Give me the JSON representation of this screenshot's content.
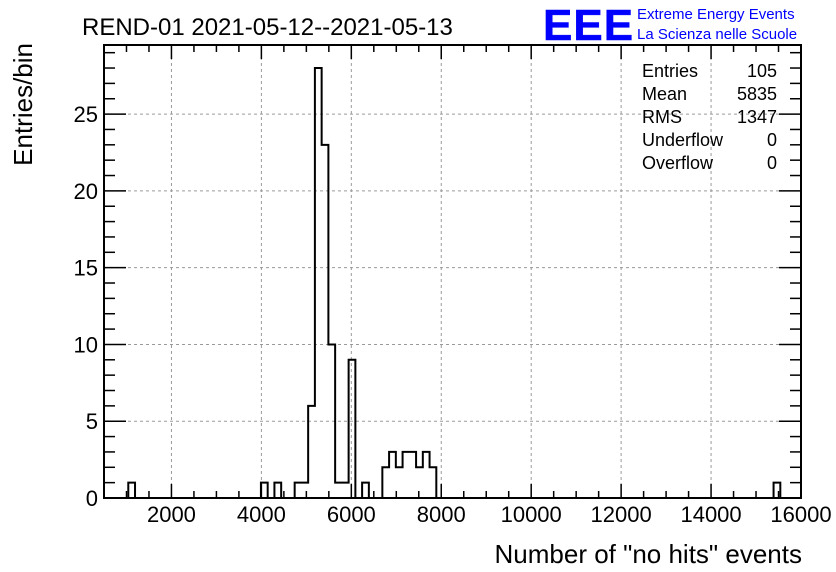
{
  "logo": {
    "letters": "EEE",
    "line1": "Extreme Energy Events",
    "line2": "La Scienza nelle Scuole",
    "color": "#0000ff"
  },
  "stats": {
    "rows": [
      {
        "label": "Entries",
        "value": "105"
      },
      {
        "label": "Mean",
        "value": "5835"
      },
      {
        "label": "RMS",
        "value": "1347"
      },
      {
        "label": "Underflow",
        "value": "0"
      },
      {
        "label": "Overflow",
        "value": "0"
      }
    ]
  },
  "chart_data": {
    "type": "bar",
    "title": "REND-01 2021-05-12--2021-05-13",
    "xlabel": "Number of \"no hits\" events",
    "ylabel": "Entries/bin",
    "xlim": [
      500,
      16000
    ],
    "ylim": [
      0,
      29.5
    ],
    "grid": true,
    "x_ticks": [
      2000,
      4000,
      6000,
      8000,
      10000,
      12000,
      14000,
      16000
    ],
    "y_ticks": [
      0,
      5,
      10,
      15,
      20,
      25
    ],
    "bins": [
      {
        "x0": 1040,
        "x1": 1190,
        "y": 1
      },
      {
        "x0": 3990,
        "x1": 4140,
        "y": 1
      },
      {
        "x0": 4290,
        "x1": 4440,
        "y": 1
      },
      {
        "x0": 4740,
        "x1": 5040,
        "y": 1
      },
      {
        "x0": 5040,
        "x1": 5190,
        "y": 6
      },
      {
        "x0": 5190,
        "x1": 5340,
        "y": 28
      },
      {
        "x0": 5340,
        "x1": 5490,
        "y": 23
      },
      {
        "x0": 5490,
        "x1": 5640,
        "y": 10
      },
      {
        "x0": 5640,
        "x1": 5940,
        "y": 1
      },
      {
        "x0": 5940,
        "x1": 6090,
        "y": 9
      },
      {
        "x0": 6240,
        "x1": 6390,
        "y": 1
      },
      {
        "x0": 6690,
        "x1": 6840,
        "y": 2
      },
      {
        "x0": 6840,
        "x1": 6990,
        "y": 3
      },
      {
        "x0": 6990,
        "x1": 7140,
        "y": 2
      },
      {
        "x0": 7140,
        "x1": 7290,
        "y": 3
      },
      {
        "x0": 7290,
        "x1": 7440,
        "y": 3
      },
      {
        "x0": 7440,
        "x1": 7590,
        "y": 2
      },
      {
        "x0": 7590,
        "x1": 7740,
        "y": 3
      },
      {
        "x0": 7740,
        "x1": 7890,
        "y": 2
      },
      {
        "x0": 15390,
        "x1": 15540,
        "y": 1
      }
    ],
    "line_color": "#000000"
  }
}
